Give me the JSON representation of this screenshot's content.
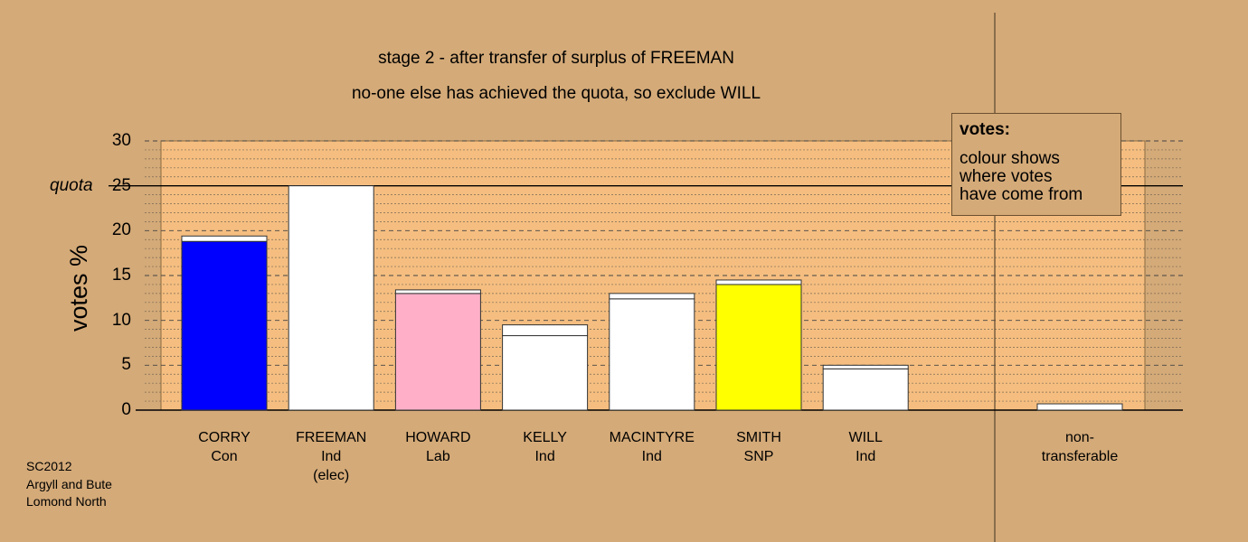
{
  "titles": {
    "line1": "stage 2 - after transfer of surplus of FREEMAN",
    "line2": "no-one else has achieved the quota, so exclude WILL"
  },
  "legend": {
    "title": "votes:",
    "lines": [
      "colour shows",
      "where votes",
      "have come from"
    ]
  },
  "source": [
    "SC2012",
    "Argyll and Bute",
    "Lomond North"
  ],
  "chart_data": {
    "type": "bar",
    "stacked": true,
    "ylabel": "votes %",
    "ylim": [
      0,
      30
    ],
    "yticks": [
      "0",
      "5",
      "10",
      "15",
      "20",
      "25",
      "30"
    ],
    "quota": 25,
    "quota_label": "quota",
    "grid": true,
    "colors": {
      "background": "#D4AA78",
      "plot": "#F5BE80",
      "Con": "#0000FF",
      "Lab": "#FFB0C8",
      "SNP": "#FFFF00",
      "Ind": "#FFFFFF",
      "transfer": "#FFFFFF"
    },
    "candidates": [
      {
        "name": "CORRY",
        "party": "Con",
        "note": "",
        "base": 18.8,
        "transfer": 0.6,
        "color": "#0000FF"
      },
      {
        "name": "FREEMAN",
        "party": "Ind",
        "note": "(elec)",
        "base": 25.0,
        "transfer": 0.0,
        "color": "#FFFFFF"
      },
      {
        "name": "HOWARD",
        "party": "Lab",
        "note": "",
        "base": 13.0,
        "transfer": 0.4,
        "color": "#FFB0C8"
      },
      {
        "name": "KELLY",
        "party": "Ind",
        "note": "",
        "base": 8.3,
        "transfer": 1.2,
        "color": "#FFFFFF"
      },
      {
        "name": "MACINTYRE",
        "party": "Ind",
        "note": "",
        "base": 12.4,
        "transfer": 0.6,
        "color": "#FFFFFF"
      },
      {
        "name": "SMITH",
        "party": "SNP",
        "note": "",
        "base": 14.0,
        "transfer": 0.5,
        "color": "#FFFF00"
      },
      {
        "name": "WILL",
        "party": "Ind",
        "note": "",
        "base": 4.6,
        "transfer": 0.4,
        "color": "#FFFFFF"
      }
    ],
    "nontransferable": {
      "line1": "non-",
      "line2": "transferable",
      "value": 0.7
    }
  }
}
